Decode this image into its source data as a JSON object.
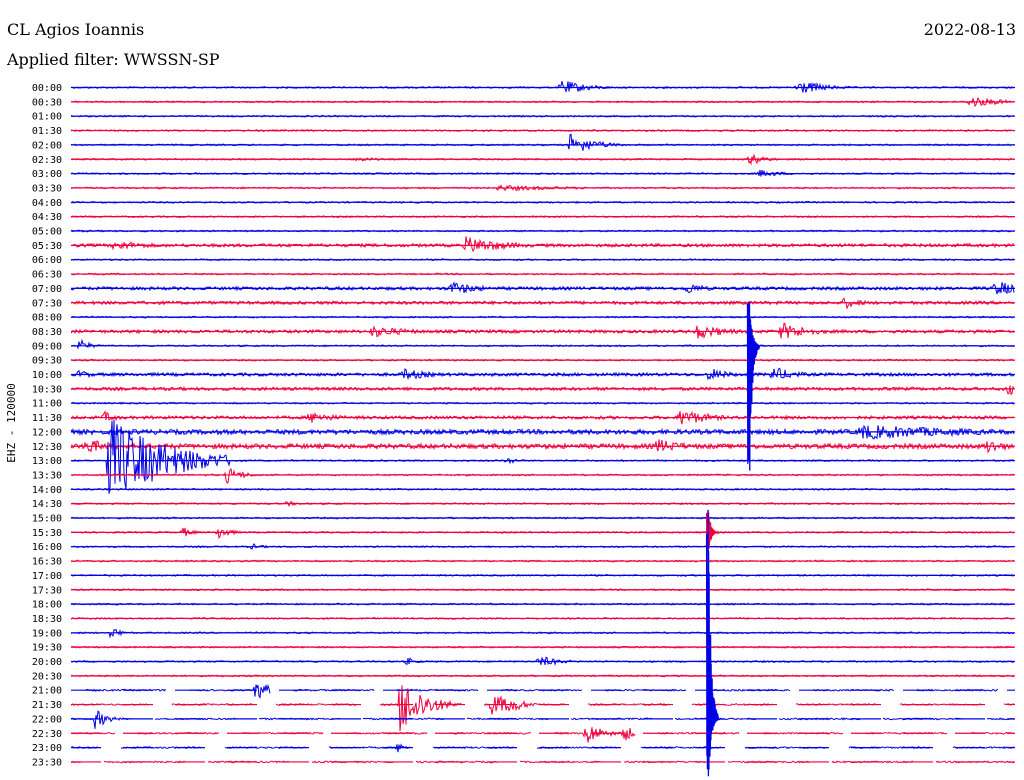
{
  "header": {
    "station": "CL Agios Ioannis",
    "date": "2022-08-13",
    "filter_label": "Applied filter: WWSSN-SP"
  },
  "chart_data": {
    "type": "line",
    "channel_label": "EHZ - 120000",
    "colors": {
      "odd_row": "#0000e6",
      "even_row": "#f0003c"
    },
    "rows": [
      "00:00",
      "00:30",
      "01:00",
      "01:30",
      "02:00",
      "02:30",
      "03:00",
      "03:30",
      "04:00",
      "04:30",
      "05:00",
      "05:30",
      "06:00",
      "06:30",
      "07:00",
      "07:30",
      "08:00",
      "08:30",
      "09:00",
      "09:30",
      "10:00",
      "10:30",
      "11:00",
      "11:30",
      "12:00",
      "12:30",
      "13:00",
      "13:30",
      "14:00",
      "14:30",
      "15:00",
      "15:30",
      "16:00",
      "16:30",
      "17:00",
      "17:30",
      "18:00",
      "18:30",
      "19:00",
      "19:30",
      "20:00",
      "20:30",
      "21:00",
      "21:30",
      "22:00",
      "22:30",
      "23:00",
      "23:30"
    ],
    "data_gaps_from": "21:00",
    "noise_levels": [
      1,
      1,
      1,
      1,
      1,
      1,
      1,
      1,
      1,
      1,
      1,
      2,
      1,
      1,
      2,
      2,
      1,
      2,
      1,
      1,
      2,
      2,
      1,
      2,
      3,
      3,
      1,
      1,
      1,
      1,
      1,
      1,
      1,
      1,
      1,
      1,
      1,
      1,
      1,
      1,
      1,
      1,
      1,
      1,
      1,
      1,
      1,
      1
    ],
    "events": [
      {
        "row": "00:00",
        "minute": 15.5,
        "amp": 8,
        "dur": 1.3
      },
      {
        "row": "00:00",
        "minute": 23,
        "amp": 8,
        "dur": 1.3
      },
      {
        "row": "00:30",
        "minute": 28.5,
        "amp": 6,
        "dur": 1.5
      },
      {
        "row": "02:00",
        "minute": 15.8,
        "amp": 11,
        "dur": 1.2
      },
      {
        "row": "02:30",
        "minute": 9,
        "amp": 3,
        "dur": 1
      },
      {
        "row": "02:30",
        "minute": 21.5,
        "amp": 6,
        "dur": 0.8
      },
      {
        "row": "03:00",
        "minute": 21.8,
        "amp": 4,
        "dur": 1.2
      },
      {
        "row": "03:30",
        "minute": 13.5,
        "amp": 3,
        "dur": 4
      },
      {
        "row": "05:30",
        "minute": 12.5,
        "amp": 9,
        "dur": 2
      },
      {
        "row": "05:30",
        "minute": 1.3,
        "amp": 5,
        "dur": 2
      },
      {
        "row": "07:00",
        "minute": 12,
        "amp": 7,
        "dur": 1.5
      },
      {
        "row": "07:00",
        "minute": 19.5,
        "amp": 6,
        "dur": 1
      },
      {
        "row": "07:00",
        "minute": 29.3,
        "amp": 8,
        "dur": 1.5
      },
      {
        "row": "07:30",
        "minute": 24.5,
        "amp": 6,
        "dur": 1
      },
      {
        "row": "08:30",
        "minute": 19.8,
        "amp": 8,
        "dur": 1.5
      },
      {
        "row": "08:30",
        "minute": 22.5,
        "amp": 9,
        "dur": 1.5
      },
      {
        "row": "08:30",
        "minute": 9.5,
        "amp": 6,
        "dur": 2
      },
      {
        "row": "09:00",
        "minute": 0.2,
        "amp": 7,
        "dur": 0.5
      },
      {
        "row": "10:00",
        "minute": 0.2,
        "amp": 5,
        "dur": 0.6
      },
      {
        "row": "10:00",
        "minute": 10.5,
        "amp": 6,
        "dur": 1.5
      },
      {
        "row": "10:00",
        "minute": 20.2,
        "amp": 7,
        "dur": 1
      },
      {
        "row": "10:00",
        "minute": 22.2,
        "amp": 8,
        "dur": 1.2
      },
      {
        "row": "10:30",
        "minute": 29.7,
        "amp": 7,
        "dur": 0.6
      },
      {
        "row": "11:30",
        "minute": 1,
        "amp": 6,
        "dur": 0.6
      },
      {
        "row": "11:30",
        "minute": 19.3,
        "amp": 9,
        "dur": 1.5
      },
      {
        "row": "11:30",
        "minute": 7.5,
        "amp": 6,
        "dur": 1.5
      },
      {
        "row": "12:00",
        "minute": 25,
        "amp": 8,
        "dur": 6
      },
      {
        "row": "12:30",
        "minute": 0.4,
        "amp": 9,
        "dur": 1
      },
      {
        "row": "12:30",
        "minute": 29,
        "amp": 8,
        "dur": 1
      },
      {
        "row": "12:30",
        "minute": 18.5,
        "amp": 8,
        "dur": 1.5
      },
      {
        "row": "13:00",
        "minute": 1.1,
        "amp": 45,
        "dur": 3
      },
      {
        "row": "13:00",
        "minute": 13.8,
        "amp": 4,
        "dur": 0.5
      },
      {
        "row": "13:30",
        "minute": 4.9,
        "amp": 8,
        "dur": 0.8
      },
      {
        "row": "14:30",
        "minute": 6.8,
        "amp": 3,
        "dur": 0.5
      },
      {
        "row": "15:30",
        "minute": 3.5,
        "amp": 5,
        "dur": 0.5
      },
      {
        "row": "15:30",
        "minute": 4.6,
        "amp": 7,
        "dur": 0.6
      },
      {
        "row": "16:00",
        "minute": 5.7,
        "amp": 3,
        "dur": 0.6
      },
      {
        "row": "19:00",
        "minute": 1.2,
        "amp": 6,
        "dur": 0.5
      },
      {
        "row": "20:00",
        "minute": 14.8,
        "amp": 6,
        "dur": 1
      },
      {
        "row": "20:00",
        "minute": 10.6,
        "amp": 4,
        "dur": 0.5
      },
      {
        "row": "21:00",
        "minute": 5.8,
        "amp": 10,
        "dur": 0.8
      },
      {
        "row": "21:30",
        "minute": 10.4,
        "amp": 30,
        "dur": 1.2
      },
      {
        "row": "21:30",
        "minute": 13.3,
        "amp": 12,
        "dur": 1
      },
      {
        "row": "21:30",
        "minute": 13.8,
        "amp": 10,
        "dur": 0.8
      },
      {
        "row": "22:00",
        "minute": 0.7,
        "amp": 10,
        "dur": 0.6
      },
      {
        "row": "22:30",
        "minute": 16.3,
        "amp": 12,
        "dur": 0.8
      },
      {
        "row": "22:30",
        "minute": 17.5,
        "amp": 8,
        "dur": 0.6
      },
      {
        "row": "23:00",
        "minute": 10.3,
        "amp": 5,
        "dur": 0.5
      }
    ],
    "spikes": [
      {
        "row": "09:00",
        "minute": 21.5,
        "up": 50,
        "down": 130
      },
      {
        "row": "15:30",
        "minute": 20.2,
        "up": 22,
        "down": 20
      },
      {
        "row": "22:00",
        "minute": 20.2,
        "up": 210,
        "down": 60
      }
    ]
  }
}
